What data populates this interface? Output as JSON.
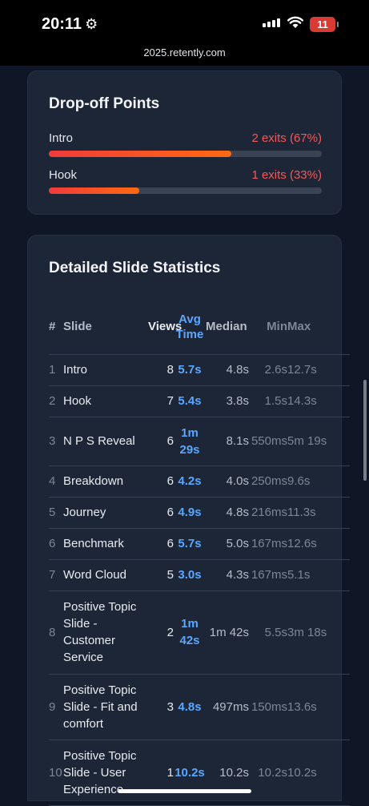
{
  "status": {
    "time": "20:11",
    "battery": "11"
  },
  "browser": {
    "url": "2025.retently.com"
  },
  "dropoff": {
    "title": "Drop-off Points",
    "items": [
      {
        "label": "Intro",
        "value": "2 exits (67%)",
        "percent": 67
      },
      {
        "label": "Hook",
        "value": "1 exits (33%)",
        "percent": 33
      }
    ]
  },
  "stats": {
    "title": "Detailed Slide Statistics",
    "headers": {
      "num": "#",
      "slide": "Slide",
      "views": "Views",
      "avg": "Avg Time",
      "median": "Median",
      "min": "Min",
      "max": "Max"
    },
    "rows": [
      {
        "num": "1",
        "slide": "Intro",
        "views": "8",
        "avg": "5.7s",
        "median": "4.8s",
        "min": "2.6s",
        "max": "12.7s"
      },
      {
        "num": "2",
        "slide": "Hook",
        "views": "7",
        "avg": "5.4s",
        "median": "3.8s",
        "min": "1.5s",
        "max": "14.3s"
      },
      {
        "num": "3",
        "slide": "N P S Reveal",
        "views": "6",
        "avg": "1m 29s",
        "median": "8.1s",
        "min": "550ms",
        "max": "5m 19s"
      },
      {
        "num": "4",
        "slide": "Breakdown",
        "views": "6",
        "avg": "4.2s",
        "median": "4.0s",
        "min": "250ms",
        "max": "9.6s"
      },
      {
        "num": "5",
        "slide": "Journey",
        "views": "6",
        "avg": "4.9s",
        "median": "4.8s",
        "min": "216ms",
        "max": "11.3s"
      },
      {
        "num": "6",
        "slide": "Benchmark",
        "views": "6",
        "avg": "5.7s",
        "median": "5.0s",
        "min": "167ms",
        "max": "12.6s"
      },
      {
        "num": "7",
        "slide": "Word Cloud",
        "views": "5",
        "avg": "3.0s",
        "median": "4.3s",
        "min": "167ms",
        "max": "5.1s"
      },
      {
        "num": "8",
        "slide": "Positive Topic Slide - Customer Service",
        "views": "2",
        "avg": "1m 42s",
        "median": "1m 42s",
        "min": "5.5s",
        "max": "3m 18s"
      },
      {
        "num": "9",
        "slide": "Positive Topic Slide - Fit and comfort",
        "views": "3",
        "avg": "4.8s",
        "median": "497ms",
        "min": "150ms",
        "max": "13.6s"
      },
      {
        "num": "10",
        "slide": "Positive Topic Slide - User Experience",
        "views": "1",
        "avg": "10.2s",
        "median": "10.2s",
        "min": "10.2s",
        "max": "10.2s"
      }
    ]
  }
}
